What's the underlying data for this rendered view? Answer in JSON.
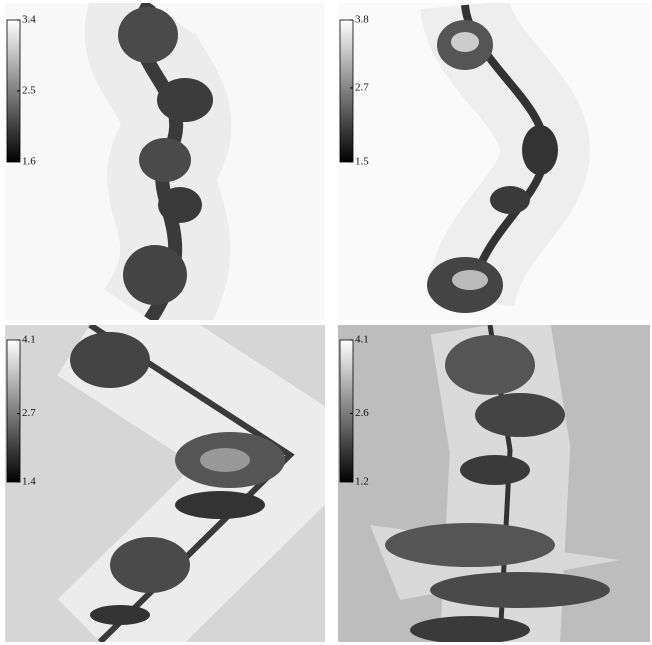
{
  "panels": [
    {
      "colorbar": {
        "ticks": [
          1.6,
          2.5,
          3.4
        ]
      }
    },
    {
      "colorbar": {
        "ticks": [
          1.5,
          2.7,
          3.8
        ]
      }
    },
    {
      "colorbar": {
        "ticks": [
          1.4,
          2.7,
          4.1
        ]
      }
    },
    {
      "colorbar": {
        "ticks": [
          1.2,
          2.6,
          4.1
        ]
      }
    }
  ]
}
